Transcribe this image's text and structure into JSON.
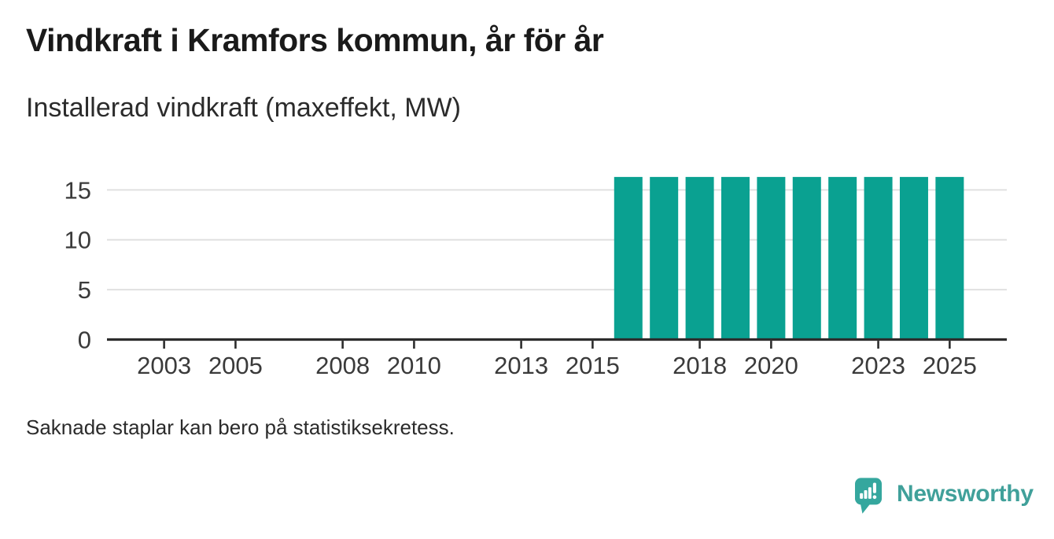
{
  "title": "Vindkraft i Kramfors kommun, år för år",
  "subtitle": "Installerad vindkraft (maxeffekt, MW)",
  "footnote": "Saknade staplar kan bero på statistiksekretess.",
  "brand": {
    "name": "Newsworthy",
    "icon": "newsworthy-speech-bubble-chart-icon",
    "icon_color": "#35a79e",
    "text_color": "#40a09a"
  },
  "chart_data": {
    "type": "bar",
    "title": "Vindkraft i Kramfors kommun, år för år",
    "subtitle": "Installerad vindkraft (maxeffekt, MW)",
    "ylabel": "Installerad vindkraft (maxeffekt, MW)",
    "xlabel": "",
    "unit": "MW",
    "x": [
      2016,
      2017,
      2018,
      2019,
      2020,
      2021,
      2022,
      2023,
      2024,
      2025
    ],
    "values": [
      16.3,
      16.3,
      16.3,
      16.3,
      16.3,
      16.3,
      16.3,
      16.3,
      16.3,
      16.3
    ],
    "x_ticks": [
      2003,
      2005,
      2008,
      2010,
      2013,
      2015,
      2018,
      2020,
      2023,
      2025
    ],
    "y_ticks": [
      0,
      5,
      10,
      15
    ],
    "xlim": [
      2001.4,
      2026.6
    ],
    "ylim": [
      0,
      17
    ],
    "grid": "horizontal",
    "legend": "none",
    "bar_color": "#0aa191",
    "axis_color": "#2d2d2d",
    "grid_color": "#e0e0e0",
    "tick_label_color": "#3a3a3a"
  }
}
